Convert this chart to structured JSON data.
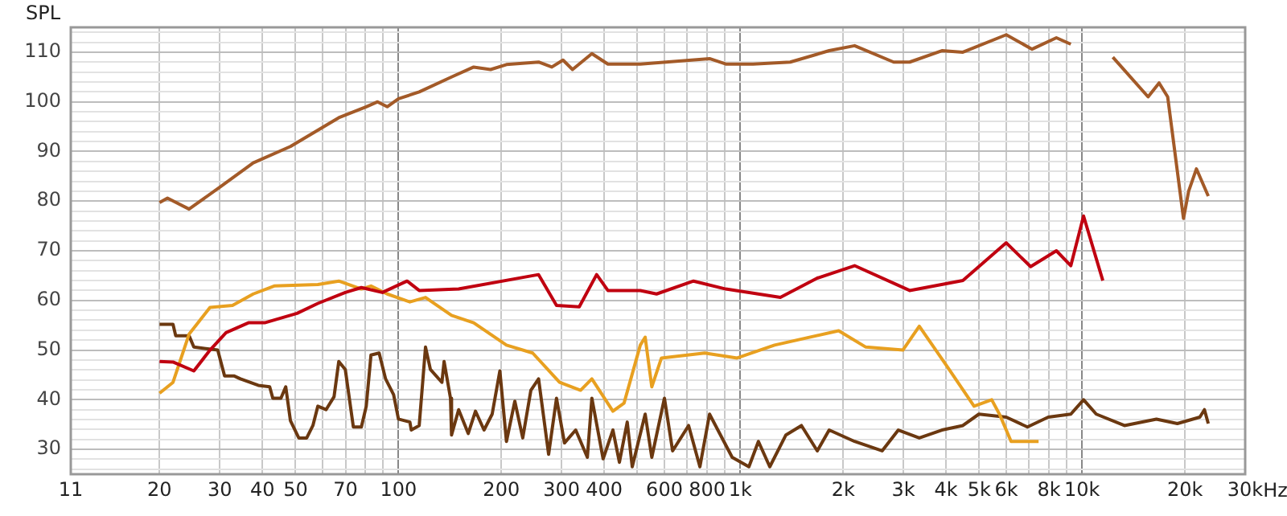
{
  "chart_data": {
    "type": "line",
    "ylabel": "SPL",
    "log": "x",
    "grid": true,
    "legend": false,
    "xlim": [
      11,
      30000
    ],
    "ylim": [
      25,
      115
    ],
    "xticks": [
      11,
      20,
      30,
      40,
      50,
      {
        "value": 60,
        "label": null
      },
      70,
      {
        "value": 80,
        "label": null
      },
      {
        "value": 90,
        "label": null
      },
      100,
      200,
      300,
      400,
      {
        "value": 500,
        "label": null
      },
      600,
      {
        "value": 700,
        "label": null
      },
      800,
      {
        "value": 900,
        "label": null
      },
      {
        "value": 1000,
        "label": "1k"
      },
      {
        "value": 2000,
        "label": "2k"
      },
      {
        "value": 3000,
        "label": "3k"
      },
      {
        "value": 4000,
        "label": "4k"
      },
      {
        "value": 5000,
        "label": "5k"
      },
      {
        "value": 6000,
        "label": "6k"
      },
      {
        "value": 7000,
        "label": null
      },
      {
        "value": 8000,
        "label": "8k"
      },
      {
        "value": 9000,
        "label": null
      },
      {
        "value": 10000,
        "label": "10k"
      },
      {
        "value": 20000,
        "label": "20k"
      },
      {
        "value": 30000,
        "label": "30k"
      }
    ],
    "xlabel": "Hz",
    "yticks": [
      {
        "value": 26,
        "label": null
      },
      {
        "value": 28,
        "label": null
      },
      30,
      {
        "value": 32,
        "label": null
      },
      {
        "value": 34,
        "label": null
      },
      {
        "value": 36,
        "label": null
      },
      {
        "value": 38,
        "label": null
      },
      40,
      {
        "value": 42,
        "label": null
      },
      {
        "value": 44,
        "label": null
      },
      {
        "value": 46,
        "label": null
      },
      {
        "value": 48,
        "label": null
      },
      50,
      {
        "value": 52,
        "label": null
      },
      {
        "value": 54,
        "label": null
      },
      {
        "value": 56,
        "label": null
      },
      {
        "value": 58,
        "label": null
      },
      60,
      {
        "value": 62,
        "label": null
      },
      {
        "value": 64,
        "label": null
      },
      {
        "value": 66,
        "label": null
      },
      {
        "value": 68,
        "label": null
      },
      70,
      {
        "value": 72,
        "label": null
      },
      {
        "value": 74,
        "label": null
      },
      {
        "value": 76,
        "label": null
      },
      {
        "value": 78,
        "label": null
      },
      80,
      {
        "value": 82,
        "label": null
      },
      {
        "value": 84,
        "label": null
      },
      {
        "value": 86,
        "label": null
      },
      {
        "value": 88,
        "label": null
      },
      90,
      {
        "value": 92,
        "label": null
      },
      {
        "value": 94,
        "label": null
      },
      {
        "value": 96,
        "label": null
      },
      {
        "value": 98,
        "label": null
      },
      100,
      {
        "value": 102,
        "label": null
      },
      {
        "value": 104,
        "label": null
      },
      {
        "value": 106,
        "label": null
      },
      {
        "value": 108,
        "label": null
      },
      110,
      {
        "value": 112,
        "label": null
      },
      {
        "value": 114,
        "label": null
      }
    ],
    "series": [
      {
        "color": "#a35a28",
        "x": [
          20,
          21.1,
          24.4,
          30.3,
          37.6,
          48.3,
          66.9,
          80.5,
          86.9,
          92.7,
          100,
          115,
          143,
          166,
          186,
          207,
          257,
          281,
          303,
          323,
          368,
          410,
          510,
          813,
          907,
          1090,
          1400,
          1820,
          2160,
          2810,
          3130,
          3890,
          4480,
          6000,
          7140,
          8410,
          9270,
          9890,
          10670,
          12300,
          15600,
          16800,
          17800,
          19800,
          20500,
          21600,
          23400
        ],
        "values": [
          79.7,
          80.6,
          78.4,
          83,
          87.7,
          91,
          96.8,
          99,
          100,
          99,
          100.6,
          102,
          105,
          107,
          106.5,
          107.5,
          108,
          107,
          108.4,
          106.5,
          109.7,
          107.6,
          107.6,
          108.7,
          107.6,
          107.6,
          108,
          110.3,
          111.3,
          108,
          108,
          110.3,
          110,
          113.5,
          110.6,
          112.9,
          111.6,
          null,
          null,
          109,
          101,
          103.8,
          101,
          76.5,
          82,
          86.5,
          81
        ]
      },
      {
        "color": "#c00010",
        "x": [
          20,
          21.9,
          25.2,
          28.1,
          31.3,
          36.4,
          40.6,
          50.5,
          58.1,
          69.9,
          77.9,
          89.7,
          106,
          115,
          150,
          257,
          290,
          338,
          380,
          410,
          510,
          569,
          730,
          907,
          1310,
          1680,
          2160,
          3130,
          4480,
          6000,
          7070,
          8410,
          9270,
          10100,
          11500
        ],
        "values": [
          47.7,
          47.6,
          45.8,
          50,
          53.5,
          55.5,
          55.5,
          57.4,
          59.4,
          61.6,
          62.6,
          61.6,
          63.9,
          62,
          62.3,
          65.2,
          59,
          58.7,
          65.2,
          62,
          62,
          61.3,
          63.9,
          62.3,
          60.6,
          64.5,
          67,
          62,
          64,
          71.6,
          66.8,
          70,
          67,
          77,
          64
        ]
      },
      {
        "color": "#e8a020",
        "x": [
          20,
          21.9,
          24.4,
          28.1,
          32.7,
          37.6,
          43.3,
          58.1,
          66.9,
          77.9,
          83.1,
          92.7,
          108,
          120,
          143,
          166,
          207,
          247,
          296,
          341,
          368,
          424,
          457,
          510,
          527,
          551,
          588,
          787,
          979,
          1260,
          1940,
          2330,
          2990,
          3340,
          4020,
          4830,
          5440,
          5740,
          6200,
          7460
        ],
        "values": [
          41.3,
          43.5,
          53.2,
          58.6,
          59,
          61.3,
          62.9,
          63.2,
          63.9,
          62.3,
          62.9,
          61.3,
          59.7,
          60.6,
          57,
          55.5,
          51,
          49.4,
          43.5,
          41.9,
          44.2,
          37.7,
          39.3,
          51,
          52.6,
          42.6,
          48.4,
          49.4,
          48.4,
          51,
          53.9,
          50.6,
          50,
          54.8,
          46.8,
          38.7,
          40,
          37,
          31.6,
          31.6
        ]
      },
      {
        "color": "#6b3810",
        "x": [
          20,
          21.9,
          22.3,
          24.4,
          25.2,
          29.6,
          31,
          33,
          34.5,
          38.9,
          42,
          42.9,
          45.3,
          46.8,
          48.3,
          51.1,
          53.9,
          56.2,
          58.1,
          61.4,
          64.8,
          66.9,
          69.9,
          73.8,
          77.9,
          80.5,
          83.1,
          87.8,
          91.7,
          96.8,
          100,
          108,
          109,
          115,
          120,
          124,
          134,
          136,
          142,
          143,
          150,
          160,
          168,
          178,
          188,
          198,
          207,
          219,
          231,
          244,
          257,
          275,
          290,
          306,
          330,
          357,
          368,
          397,
          424,
          443,
          467,
          483,
          527,
          551,
          600,
          634,
          706,
          762,
          813,
          947,
          1060,
          1130,
          1220,
          1360,
          1510,
          1680,
          1820,
          2160,
          2600,
          2900,
          3340,
          3890,
          4480,
          4990,
          6000,
          6920,
          7960,
          9270,
          10100,
          11000,
          13300,
          16500,
          19000,
          22100,
          22800,
          23400
        ],
        "values": [
          55.2,
          55.2,
          52.9,
          52.9,
          50.6,
          50,
          44.8,
          44.8,
          44.2,
          42.9,
          42.6,
          40.3,
          40.3,
          42.6,
          35.8,
          32.3,
          32.3,
          34.8,
          38.7,
          38,
          40.6,
          47.7,
          46.1,
          34.5,
          34.5,
          38.7,
          49,
          49.4,
          44.2,
          41,
          36.1,
          35.5,
          33.9,
          34.8,
          50.6,
          46.1,
          43.5,
          47.7,
          40.3,
          32.9,
          38,
          33.2,
          37.7,
          33.9,
          37.1,
          45.8,
          31.6,
          39.7,
          32.3,
          41.9,
          44.2,
          29,
          40.3,
          31.3,
          33.9,
          28.4,
          40.3,
          28.1,
          33.9,
          27.4,
          35.5,
          26.5,
          37.1,
          28.4,
          40.3,
          29.7,
          34.8,
          26.5,
          37.1,
          28.4,
          26.5,
          31.6,
          26.5,
          32.9,
          34.8,
          29.7,
          33.9,
          31.6,
          29.7,
          33.9,
          32.3,
          33.9,
          34.8,
          37.1,
          36.5,
          34.5,
          36.5,
          37.1,
          40,
          37.1,
          34.8,
          36.1,
          35.2,
          36.5,
          38,
          35.2
        ]
      }
    ]
  }
}
